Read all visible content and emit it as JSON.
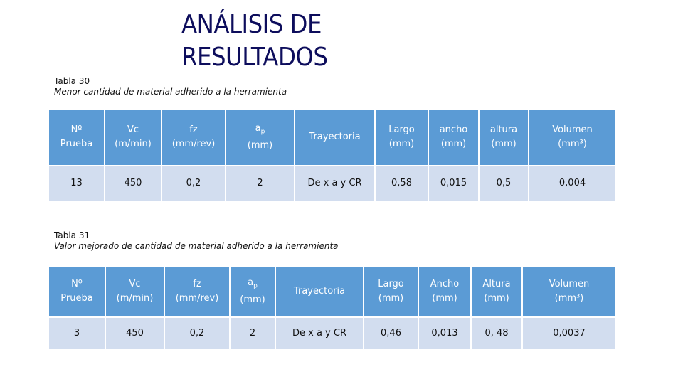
{
  "title": "ANÁLISIS DE RESULTADOS",
  "table1": {
    "caption_number": "Tabla 30",
    "caption_text": "Menor cantidad de material adherido a la herramienta",
    "headers": {
      "prueba_line1": "Nº",
      "prueba_line2": "Prueba",
      "vc_line1": "Vc",
      "vc_line2": "(m/min)",
      "fz_line1": "fz",
      "fz_line2": "(mm/rev)",
      "ap_base": "a",
      "ap_sub": "p",
      "ap_line2": "(mm)",
      "trayectoria": "Trayectoria",
      "largo_line1": "Largo",
      "largo_line2": "(mm)",
      "ancho_line1": "ancho",
      "ancho_line2": "(mm)",
      "altura_line1": "altura",
      "altura_line2": "(mm)",
      "volumen_line1": "Volumen",
      "volumen_line2": "(mm³)"
    },
    "row": [
      "13",
      "450",
      "0,2",
      "2",
      "De x a y CR",
      "0,58",
      "0,015",
      "0,5",
      "0,004"
    ]
  },
  "table2": {
    "caption_number": "Tabla 31",
    "caption_text": "Valor mejorado de cantidad de material adherido a la herramienta",
    "headers": {
      "prueba_line1": "Nº",
      "prueba_line2": "Prueba",
      "vc_line1": "Vc",
      "vc_line2": "(m/min)",
      "fz_line1": "fz",
      "fz_line2": "(mm/rev)",
      "ap_base": "a",
      "ap_sub": "p",
      "ap_line2": "(mm)",
      "trayectoria": "Trayectoria",
      "largo_line1": "Largo",
      "largo_line2": "(mm)",
      "ancho_line1": "Ancho",
      "ancho_line2": "(mm)",
      "altura_line1": "Altura",
      "altura_line2": "(mm)",
      "volumen_line1": "Volumen",
      "volumen_line2": "(mm³)"
    },
    "row": [
      "3",
      "450",
      "0,2",
      "2",
      "De x a y CR",
      "0,46",
      "0,013",
      "0, 48",
      "0,0037"
    ]
  },
  "colors": {
    "header_bg": "#5b9bd5",
    "row_bg": "#d2ddef",
    "title": "#0d0d5c"
  }
}
